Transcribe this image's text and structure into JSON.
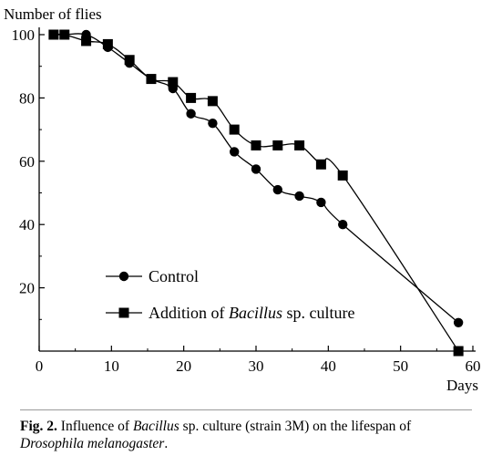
{
  "chart_data": {
    "type": "line",
    "ylabel": "Number of flies",
    "xlabel": "Days",
    "xlim": [
      0,
      60
    ],
    "ylim": [
      0,
      100
    ],
    "xticks": [
      0,
      10,
      20,
      30,
      40,
      50,
      60
    ],
    "yticks": [
      20,
      40,
      60,
      80,
      100
    ],
    "grid": false,
    "legend_position": "lower-left",
    "series": [
      {
        "name": "Control",
        "marker": "circle",
        "x": [
          2,
          3.5,
          6.5,
          9.5,
          12.5,
          15.5,
          18.5,
          21,
          24,
          27,
          30,
          33,
          36,
          39,
          42,
          58
        ],
        "y": [
          100,
          100,
          100,
          96,
          91,
          86,
          83,
          75,
          72,
          63,
          57.5,
          51,
          49,
          47,
          40,
          9
        ]
      },
      {
        "name_prefix": "Addition of ",
        "name_italic": "Bacillus",
        "name_suffix": " sp. culture",
        "marker": "square",
        "x": [
          2,
          3.5,
          6.5,
          9.5,
          12.5,
          15.5,
          18.5,
          21,
          24,
          27,
          30,
          33,
          36,
          39,
          42,
          58
        ],
        "y": [
          100,
          100,
          98,
          97,
          92,
          86,
          85,
          80,
          79,
          70,
          65,
          65,
          65,
          59,
          55.5,
          0
        ]
      }
    ]
  },
  "caption": {
    "label": "Fig. 2.",
    "text1": " Influence of ",
    "italic1": "Bacillus",
    "text2": " sp. culture (strain 3M) on the lifespan of ",
    "italic2": "Drosophila melanogaster",
    "text3": "."
  }
}
